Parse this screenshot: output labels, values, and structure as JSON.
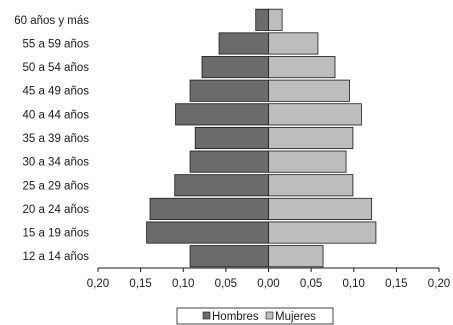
{
  "chart_data": {
    "type": "bar",
    "orientation": "horizontal",
    "layout": "population-pyramid",
    "categories": [
      "12 a 14 años",
      "15 a 19 años",
      "20 a 24 años",
      "25 a 29 años",
      "30 a 34 años",
      "35 a 39 años",
      "40 a 44 años",
      "45 a 49 años",
      "50 a 54 años",
      "55 a 59 años",
      "60 años y más"
    ],
    "series": [
      {
        "name": "Hombres",
        "color": "#6b6b6b",
        "side": "left",
        "values": [
          0.092,
          0.143,
          0.139,
          0.11,
          0.092,
          0.086,
          0.109,
          0.092,
          0.078,
          0.058,
          0.015
        ]
      },
      {
        "name": "Mujeres",
        "color": "#bdbdbd",
        "side": "right",
        "values": [
          0.064,
          0.126,
          0.121,
          0.099,
          0.091,
          0.099,
          0.109,
          0.095,
          0.078,
          0.058,
          0.016
        ]
      }
    ],
    "xlim": [
      -0.2,
      0.2
    ],
    "xticks": [
      -0.2,
      -0.15,
      -0.1,
      -0.05,
      0,
      0.05,
      0.1,
      0.15,
      0.2
    ],
    "xtick_labels": [
      "0,20",
      "0,15",
      "0,10",
      "0,05",
      "0,00",
      "0,05",
      "0,10",
      "0,15",
      "0,20"
    ],
    "legend_position": "bottom",
    "grid": false
  }
}
